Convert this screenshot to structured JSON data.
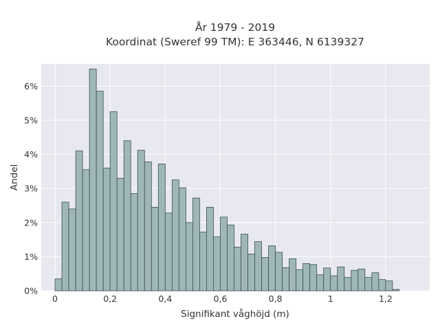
{
  "chart_data": {
    "type": "bar",
    "title_lines": [
      "År 1979 - 2019",
      "Koordinat (Sweref 99 TM): E 363446, N 6139327"
    ],
    "xlabel": "Signifikant våghöjd (m)",
    "ylabel": "Andel",
    "xlim": [
      -0.05,
      1.36
    ],
    "ylim": [
      0,
      6.65
    ],
    "xticks": [
      {
        "value": 0,
        "label": "0"
      },
      {
        "value": 0.2,
        "label": "0,2"
      },
      {
        "value": 0.4,
        "label": "0,4"
      },
      {
        "value": 0.6,
        "label": "0,6"
      },
      {
        "value": 0.8,
        "label": "0,8"
      },
      {
        "value": 1.0,
        "label": "1"
      },
      {
        "value": 1.2,
        "label": "1,2"
      }
    ],
    "yticks": [
      {
        "value": 0,
        "label": "0%"
      },
      {
        "value": 1,
        "label": "1%"
      },
      {
        "value": 2,
        "label": "2%"
      },
      {
        "value": 3,
        "label": "3%"
      },
      {
        "value": 4,
        "label": "4%"
      },
      {
        "value": 5,
        "label": "5%"
      },
      {
        "value": 6,
        "label": "6%"
      }
    ],
    "bin_width": 0.025,
    "bin_start": 0.0125,
    "values": [
      0.35,
      2.6,
      2.4,
      4.1,
      3.55,
      6.5,
      5.85,
      3.6,
      5.25,
      3.3,
      4.4,
      2.85,
      4.12,
      3.78,
      2.45,
      3.72,
      2.28,
      3.25,
      3.02,
      2.0,
      2.72,
      1.72,
      2.45,
      1.58,
      2.16,
      1.93,
      1.28,
      1.66,
      1.08,
      1.44,
      0.98,
      1.32,
      1.13,
      0.68,
      0.94,
      0.62,
      0.8,
      0.77,
      0.47,
      0.67,
      0.44,
      0.7,
      0.39,
      0.6,
      0.64,
      0.39,
      0.53,
      0.33,
      0.29,
      0.04
    ],
    "grid": true,
    "colors": {
      "plot_background": "#e8e8f0",
      "grid": "#ffffff",
      "bar_fill": "#9fb8b7",
      "bar_edge": "#3a4d4c"
    }
  }
}
